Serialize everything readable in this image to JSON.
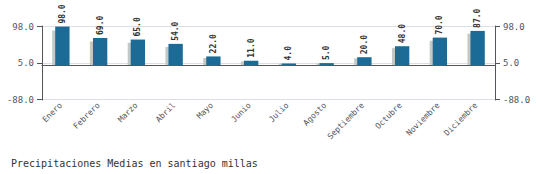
{
  "chart_data": {
    "type": "bar",
    "title": "Precipitaciones Medias en santiago millas",
    "categories": [
      "Enero",
      "Febrero",
      "Marzo",
      "Abril",
      "Mayo",
      "Junio",
      "Julio",
      "Agosto",
      "Septiembre",
      "Octubre",
      "Noviembre",
      "Diciembre"
    ],
    "series": [
      {
        "color": "#c5c9c5",
        "values": [
          88.0,
          60.0,
          57.0,
          46.0,
          18.0,
          9.0,
          3.5,
          4.0,
          17.0,
          43.0,
          62.0,
          80.0
        ]
      },
      {
        "color": "#1b6b96",
        "values": [
          98.0,
          69.0,
          65.0,
          54.0,
          22.0,
          11.0,
          4.0,
          5.0,
          20.0,
          48.0,
          70.0,
          87.0
        ],
        "data_labels": true,
        "value_labels": [
          "98.0",
          "69.0",
          "65.0",
          "54.0",
          "22.0",
          "11.0",
          "4.0",
          "5.0",
          "20.0",
          "48.0",
          "70.0",
          "87.0"
        ]
      }
    ],
    "ylim": [
      -89.0,
      99.5
    ],
    "yticks": [
      {
        "value": -88.0,
        "label": "-88.0"
      },
      {
        "value": 5.0,
        "label": "5.0"
      },
      {
        "value": 98.0,
        "label": "98.0"
      }
    ],
    "y2lim": [
      -89.0,
      99.5
    ],
    "y2ticks": [
      {
        "value": -88.0,
        "label": "-88.0"
      },
      {
        "value": 5.0,
        "label": "5.0"
      },
      {
        "value": 98.0,
        "label": "98.0"
      }
    ],
    "grid": true
  }
}
